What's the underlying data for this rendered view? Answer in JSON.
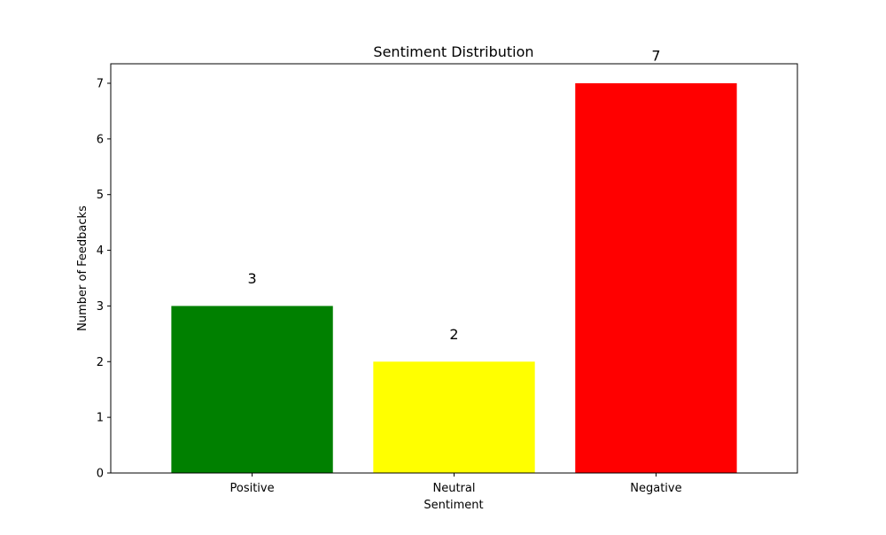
{
  "chart_data": {
    "type": "bar",
    "title": "Sentiment Distribution",
    "xlabel": "Sentiment",
    "ylabel": "Number of Feedbacks",
    "categories": [
      "Positive",
      "Neutral",
      "Negative"
    ],
    "values": [
      3,
      2,
      7
    ],
    "colors": [
      "#008000",
      "#ffff00",
      "#ff0000"
    ],
    "data_labels": [
      "3",
      "2",
      "7"
    ],
    "ylim": [
      0,
      7.35
    ],
    "yticks": [
      0,
      1,
      2,
      3,
      4,
      5,
      6,
      7
    ],
    "grid": false,
    "legend": "none"
  }
}
